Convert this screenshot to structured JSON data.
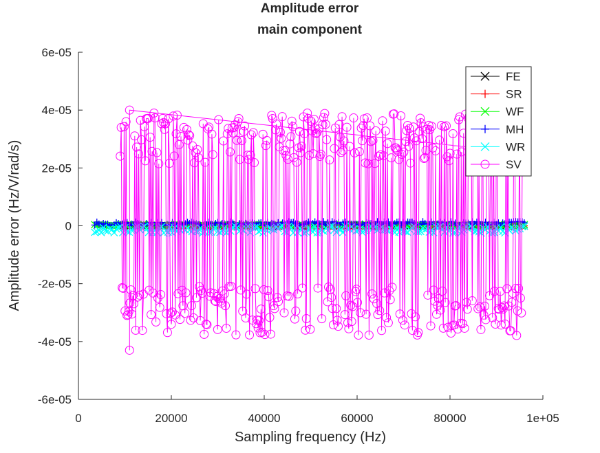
{
  "chart_data": {
    "type": "line",
    "title": [
      "Amplitude error",
      "main component"
    ],
    "xlabel": "Sampling frequency (Hz)",
    "ylabel": "Amplitude error (Hz/V/rad/s)",
    "xlim": [
      0,
      100000
    ],
    "ylim": [
      -6e-05,
      6e-05
    ],
    "xticks": [
      0,
      20000,
      40000,
      60000,
      80000,
      100000
    ],
    "xticklabels": [
      "0",
      "20000",
      "40000",
      "60000",
      "80000",
      "1e+05"
    ],
    "yticks": [
      -6e-05,
      -4e-05,
      -2e-05,
      0,
      2e-05,
      4e-05,
      6e-05
    ],
    "yticklabels": [
      "-6e-05",
      "-4e-05",
      "-2e-05",
      "0",
      "2e-05",
      "4e-05",
      "6e-05"
    ],
    "grid": false,
    "legend_position": "top-right",
    "series": [
      {
        "name": "FE",
        "color": "#000000",
        "marker": "x",
        "x_range": [
          9000,
          96000
        ],
        "y_band": [
          -2e-07,
          2e-07
        ]
      },
      {
        "name": "SR",
        "color": "#ff0000",
        "marker": "+",
        "x_range": [
          9000,
          96000
        ],
        "y_band": [
          -2e-07,
          2e-07
        ]
      },
      {
        "name": "WF",
        "color": "#00ff00",
        "marker": "x",
        "x_range": [
          3500,
          96000
        ],
        "y_band": [
          0,
          5e-07
        ]
      },
      {
        "name": "MH",
        "color": "#0000ff",
        "marker": "+",
        "x_range": [
          3500,
          96000
        ],
        "y_band": [
          0,
          1.5e-06
        ]
      },
      {
        "name": "WR",
        "color": "#00ffff",
        "marker": "x",
        "x_range": [
          3500,
          96000
        ],
        "y_band": [
          -2.5e-06,
          0
        ]
      },
      {
        "name": "SV",
        "color": "#ff00ff",
        "marker": "o",
        "x_range": [
          9000,
          96000
        ],
        "y_band": [
          -3.8e-05,
          3.9e-05
        ],
        "extremes": [
          {
            "x": 11000,
            "y": 4e-05
          },
          {
            "x": 11000,
            "y": -4.3e-05
          }
        ]
      }
    ]
  }
}
